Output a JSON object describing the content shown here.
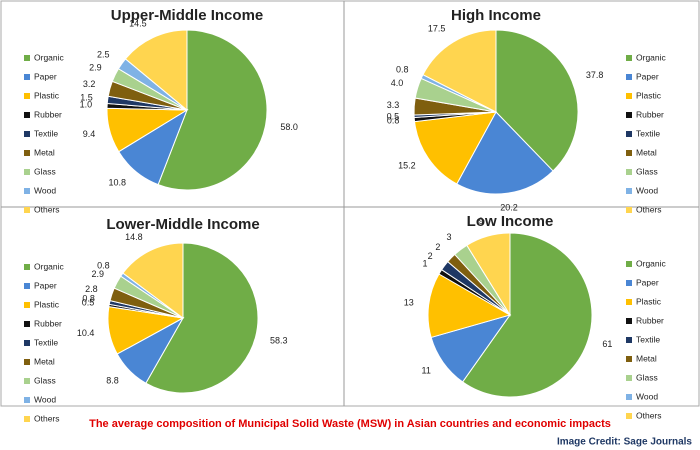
{
  "chart_data": [
    {
      "type": "pie",
      "title": "Upper-Middle Income",
      "legend": "left",
      "categories": [
        "Organic",
        "Paper",
        "Plastic",
        "Rubber",
        "Textile",
        "Metal",
        "Glass",
        "Wood",
        "Others"
      ],
      "values": [
        58.0,
        10.8,
        9.4,
        1.0,
        1.5,
        3.2,
        2.9,
        2.5,
        14.5
      ],
      "value_labels": [
        "58.0",
        "10.8",
        "9.4",
        "1.0",
        "1.5",
        "3.2",
        "2.9",
        "2.5",
        "14.5"
      ],
      "colors": [
        "#70ad47",
        "#4a86d4",
        "#ffc000",
        "#111111",
        "#1f3864",
        "#7f5f0f",
        "#a9d18e",
        "#7fb2e5",
        "#ffd54f"
      ]
    },
    {
      "type": "pie",
      "title": "High Income",
      "legend": "right",
      "categories": [
        "Organic",
        "Paper",
        "Plastic",
        "Rubber",
        "Textile",
        "Metal",
        "Glass",
        "Wood",
        "Others"
      ],
      "values": [
        37.8,
        20.2,
        15.2,
        0.8,
        0.5,
        3.3,
        4.0,
        0.8,
        17.5
      ],
      "value_labels": [
        "37.8",
        "20.2",
        "15.2",
        "0.8",
        "0.5",
        "3.3",
        "4.0",
        "0.8",
        "17.5"
      ],
      "colors": [
        "#70ad47",
        "#4a86d4",
        "#ffc000",
        "#111111",
        "#1f3864",
        "#7f5f0f",
        "#a9d18e",
        "#7fb2e5",
        "#ffd54f"
      ]
    },
    {
      "type": "pie",
      "title": "Lower-Middle Income",
      "legend": "left",
      "categories": [
        "Organic",
        "Paper",
        "Plastic",
        "Rubber",
        "Textile",
        "Metal",
        "Glass",
        "Wood",
        "Others"
      ],
      "values": [
        58.3,
        8.8,
        10.4,
        0.5,
        0.8,
        2.8,
        2.9,
        0.8,
        14.8
      ],
      "colors": [
        "#70ad47",
        "#4a86d4",
        "#ffc000",
        "#111111",
        "#1f3864",
        "#7f5f0f",
        "#a9d18e",
        "#7fb2e5",
        "#ffd54f"
      ]
    },
    {
      "type": "pie",
      "title": "Low Income",
      "legend": "right",
      "categories": [
        "Organic",
        "Paper",
        "Plastic",
        "Rubber",
        "Textile",
        "Metal",
        "Glass",
        "Wood",
        "Others"
      ],
      "values": [
        61,
        11,
        13,
        1,
        2,
        2,
        3,
        0,
        9
      ],
      "colors": [
        "#70ad47",
        "#4a86d4",
        "#ffc000",
        "#111111",
        "#1f3864",
        "#7f5f0f",
        "#a9d18e",
        "#7fb2e5",
        "#ffd54f"
      ]
    }
  ],
  "caption": "The average composition of Municipal Solid Waste (MSW) in Asian countries and economic impacts",
  "credit": "Image Credit: Sage Journals"
}
